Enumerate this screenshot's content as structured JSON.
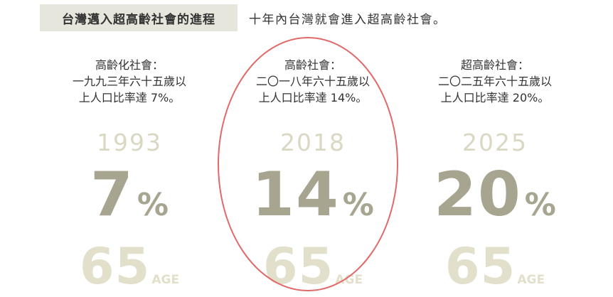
{
  "header": {
    "tag": "台灣邁入超高齡社會的進程",
    "subtitle": "十年內台灣就會進入超高齡社會。"
  },
  "stages": [
    {
      "desc_lines": [
        "高齡化社會：",
        "一九九三年六十五歲以",
        "上人口比率達 7%。"
      ],
      "year": "1993",
      "percent_num": "7",
      "percent_sym": "%",
      "age_num": "65",
      "age_label": "AGE",
      "percent_value": 7
    },
    {
      "desc_lines": [
        "高齡社會：",
        "二〇一八年六十五歲以",
        "上人口比率達 14%。"
      ],
      "year": "2018",
      "percent_num": "14",
      "percent_sym": "%",
      "age_num": "65",
      "age_label": "AGE",
      "percent_value": 14,
      "highlighted": true
    },
    {
      "desc_lines": [
        "超高齡社會：",
        "二〇二五年六十五歲以",
        "上人口比率達 20%。"
      ],
      "year": "2025",
      "percent_num": "20",
      "percent_sym": "%",
      "age_num": "65",
      "age_label": "AGE",
      "percent_value": 20
    }
  ],
  "colors": {
    "tag_bg": "#e7e6dd",
    "year": "#dad8c3",
    "percent": "#a7a58f",
    "age": "#e2dfca",
    "highlight_ring": "#e06a6a"
  }
}
